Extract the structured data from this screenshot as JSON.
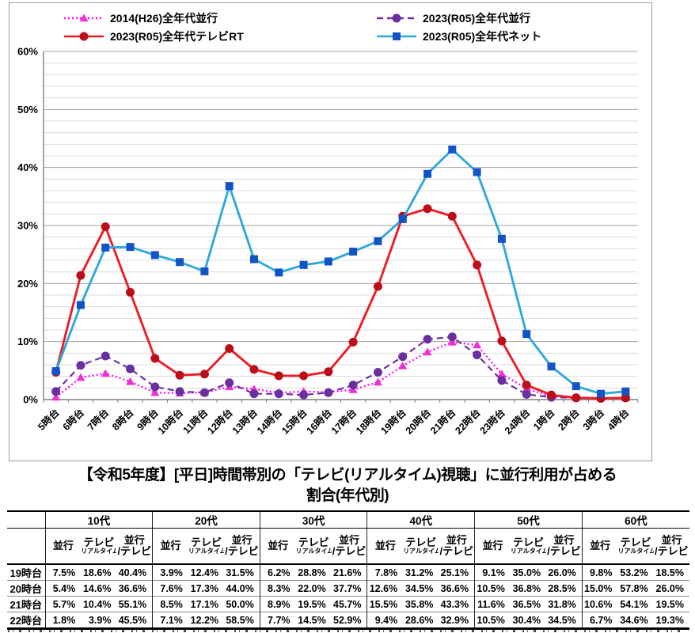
{
  "legend": [
    {
      "label": "2014(H26)全年代並行",
      "color": "#FF00FF",
      "marker_color": "#F12DD3",
      "marker": "triangle",
      "line": "dotted"
    },
    {
      "label": "2023(R05)全年代並行",
      "color": "#7030A0",
      "marker_color": "#6A2F9E",
      "marker": "circle",
      "line": "dashed"
    },
    {
      "label": "2023(R05)全年代テレビRT",
      "color": "#ED1C24",
      "marker_color": "#BB0E18",
      "marker": "circle",
      "line": "solid"
    },
    {
      "label": "2023(R05)全年代ネット",
      "color": "#2FA8DC",
      "marker_color": "#1353C8",
      "marker": "square",
      "line": "solid"
    }
  ],
  "chart_data": {
    "type": "line",
    "categories": [
      "5時台",
      "6時台",
      "7時台",
      "8時台",
      "9時台",
      "10時台",
      "11時台",
      "12時台",
      "13時台",
      "14時台",
      "15時台",
      "16時台",
      "17時台",
      "18時台",
      "19時台",
      "20時台",
      "21時台",
      "22時台",
      "23時台",
      "24時台",
      "1時台",
      "2時台",
      "3時台",
      "4時台"
    ],
    "ylim": [
      0,
      60
    ],
    "ytick_labels": [
      "0%",
      "10%",
      "20%",
      "30%",
      "40%",
      "50%",
      "60%"
    ],
    "minor_grid_step": 2,
    "legend_position": "top",
    "series": [
      {
        "name": "2014(H26)全年代並行",
        "values": [
          0.4,
          3.8,
          4.5,
          3.1,
          1.2,
          1.1,
          1.2,
          2.2,
          1.8,
          1.2,
          1.4,
          1.3,
          1.7,
          3.0,
          5.8,
          8.2,
          9.9,
          9.4,
          4.4,
          1.9,
          0.5,
          0.4,
          0.3,
          0.3
        ]
      },
      {
        "name": "2023(R05)全年代並行",
        "values": [
          1.4,
          5.9,
          7.5,
          5.3,
          2.2,
          1.4,
          1.2,
          2.9,
          1.0,
          1.0,
          0.8,
          1.2,
          2.5,
          4.7,
          7.4,
          10.4,
          10.8,
          7.7,
          3.3,
          0.9,
          0.4,
          0.3,
          0.2,
          0.3
        ]
      },
      {
        "name": "2023(R05)全年代テレビRT",
        "values": [
          4.7,
          21.4,
          29.8,
          18.5,
          7.1,
          4.2,
          4.4,
          8.8,
          5.2,
          4.1,
          4.1,
          4.8,
          9.9,
          19.5,
          31.6,
          32.9,
          31.6,
          23.2,
          10.1,
          2.5,
          0.8,
          0.3,
          0.2,
          0.3
        ]
      },
      {
        "name": "2023(R05)全年代ネット",
        "values": [
          4.9,
          16.3,
          26.2,
          26.3,
          24.9,
          23.7,
          22.1,
          36.8,
          24.2,
          21.9,
          23.2,
          23.8,
          25.5,
          27.3,
          31.1,
          38.9,
          43.1,
          39.2,
          27.7,
          11.3,
          5.7,
          2.3,
          1.0,
          1.4
        ]
      }
    ]
  },
  "title": {
    "line1": "【令和5年度】[平日]時間帯別の「テレビ(リアルタイム)視聴」に並行利用が占める",
    "line2": "割合(年代別)"
  },
  "table": {
    "group_headers": [
      "10代",
      "20代",
      "30代",
      "40代",
      "50代",
      "60代"
    ],
    "sub_headers": {
      "parallel": "並行",
      "tv_line1": "テレビ",
      "tv_line2": "リアルタイム",
      "ratio_line1": "並行",
      "ratio_line2": "/テレビ"
    },
    "rows": [
      {
        "label": "19時台",
        "values": [
          "7.5%",
          "18.6%",
          "40.4%",
          "3.9%",
          "12.4%",
          "31.5%",
          "6.2%",
          "28.8%",
          "21.6%",
          "7.8%",
          "31.2%",
          "25.1%",
          "9.1%",
          "35.0%",
          "26.0%",
          "9.8%",
          "53.2%",
          "18.5%"
        ]
      },
      {
        "label": "20時台",
        "values": [
          "5.4%",
          "14.6%",
          "36.6%",
          "7.6%",
          "17.3%",
          "44.0%",
          "8.3%",
          "22.0%",
          "37.7%",
          "12.6%",
          "34.5%",
          "36.6%",
          "10.5%",
          "36.8%",
          "28.5%",
          "15.0%",
          "57.8%",
          "26.0%"
        ]
      },
      {
        "label": "21時台",
        "values": [
          "5.7%",
          "10.4%",
          "55.1%",
          "8.5%",
          "17.1%",
          "50.0%",
          "8.9%",
          "19.5%",
          "45.7%",
          "15.5%",
          "35.8%",
          "43.3%",
          "11.6%",
          "36.5%",
          "31.8%",
          "10.6%",
          "54.1%",
          "19.5%"
        ]
      },
      {
        "label": "22時台",
        "values": [
          "1.8%",
          "3.9%",
          "45.5%",
          "7.1%",
          "12.2%",
          "58.5%",
          "7.7%",
          "14.5%",
          "52.9%",
          "9.4%",
          "28.6%",
          "32.9%",
          "10.5%",
          "30.4%",
          "34.5%",
          "6.7%",
          "34.6%",
          "19.3%"
        ]
      }
    ]
  }
}
